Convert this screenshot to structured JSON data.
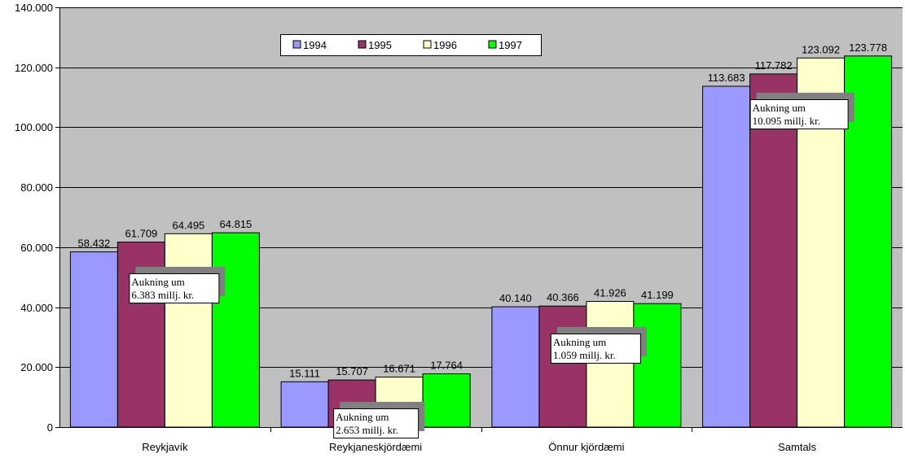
{
  "chart_data": {
    "type": "bar",
    "categories": [
      "Reykjavík",
      "Reykjaneskjördæmi",
      "Önnur kjördæmi",
      "Samtals"
    ],
    "series": [
      {
        "name": "1994",
        "color": "#9999ff",
        "values": [
          58432,
          15111,
          40140,
          113683
        ],
        "labels": [
          "58.432",
          "15.111",
          "40.140",
          "113.683"
        ]
      },
      {
        "name": "1995",
        "color": "#993366",
        "values": [
          61709,
          15707,
          40366,
          117782
        ],
        "labels": [
          "61.709",
          "15.707",
          "40.366",
          "117.782"
        ]
      },
      {
        "name": "1996",
        "color": "#ffffcc",
        "values": [
          64495,
          16671,
          41926,
          123092
        ],
        "labels": [
          "64.495",
          "16.671",
          "41.926",
          "123.092"
        ]
      },
      {
        "name": "1997",
        "color": "#00ff00",
        "values": [
          64815,
          17764,
          41199,
          123778
        ],
        "labels": [
          "64.815",
          "17.764",
          "41.199",
          "123.778"
        ]
      }
    ],
    "ylim": [
      0,
      140000
    ],
    "yticks": [
      0,
      20000,
      40000,
      60000,
      80000,
      100000,
      120000,
      140000
    ],
    "ytick_labels": [
      "0",
      "20.000",
      "40.000",
      "60.000",
      "80.000",
      "100.000",
      "120.000",
      "140.000"
    ],
    "grid": true,
    "plot_background": "#c0c0c0",
    "legend_position": "top-center",
    "annotations": [
      {
        "category": "Reykjavík",
        "line1": "Aukning um",
        "line2": "6.383 millj. kr."
      },
      {
        "category": "Reykjaneskjördæmi",
        "line1": "Aukning um",
        "line2": "2.653 millj. kr."
      },
      {
        "category": "Önnur kjördæmi",
        "line1": "Aukning um",
        "line2": "1.059 millj. kr."
      },
      {
        "category": "Samtals",
        "line1": "Aukning um",
        "line2": "10.095 millj. kr."
      }
    ]
  }
}
